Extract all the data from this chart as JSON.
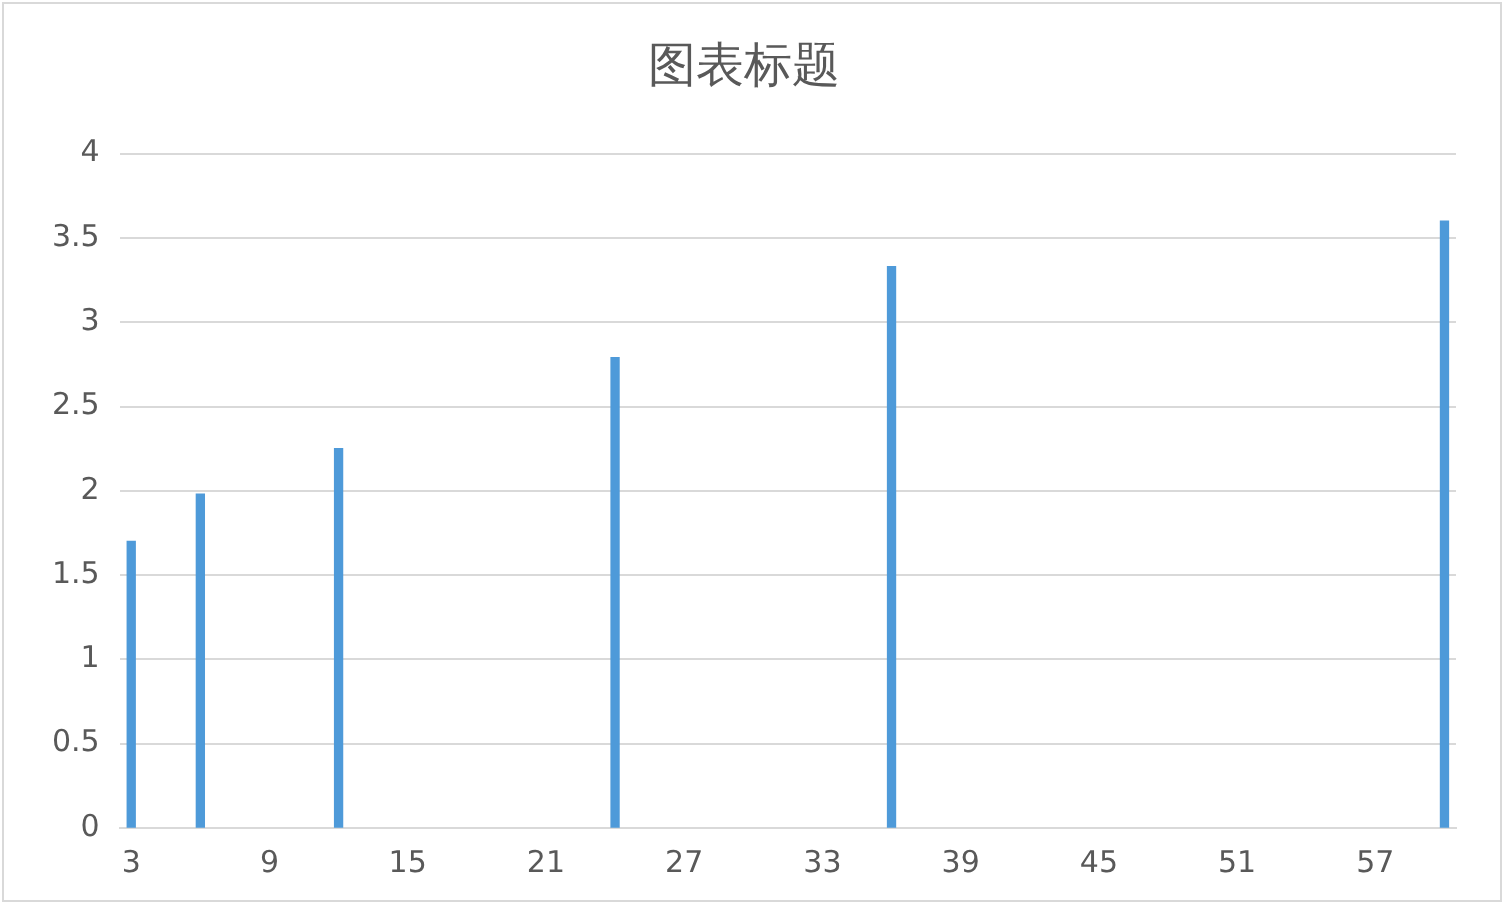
{
  "chart_data": {
    "type": "bar",
    "title": "图表标题",
    "x": [
      3,
      6,
      12,
      24,
      36,
      60
    ],
    "values": [
      1.7,
      1.98,
      2.25,
      2.79,
      3.33,
      3.6
    ],
    "color": "#4e9ad9",
    "xlim": [
      2.5,
      60.5
    ],
    "xticks": [
      3,
      9,
      15,
      21,
      27,
      33,
      39,
      45,
      51,
      57
    ],
    "ylim": [
      0,
      4
    ],
    "yticks": [
      0,
      0.5,
      1,
      1.5,
      2,
      2.5,
      3,
      3.5,
      4
    ],
    "grid": "y",
    "legend": false
  }
}
